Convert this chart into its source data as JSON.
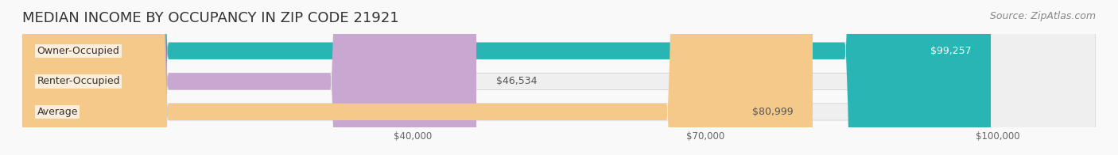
{
  "title": "MEDIAN INCOME BY OCCUPANCY IN ZIP CODE 21921",
  "source": "Source: ZipAtlas.com",
  "categories": [
    "Owner-Occupied",
    "Renter-Occupied",
    "Average"
  ],
  "values": [
    99257,
    46534,
    80999
  ],
  "labels": [
    "$99,257",
    "$46,534",
    "$80,999"
  ],
  "bar_colors": [
    "#2ab5b5",
    "#c8a8d0",
    "#f5c98a"
  ],
  "bar_bg_colors": [
    "#e8e8e8",
    "#e8e8e8",
    "#e8e8e8"
  ],
  "xmin": 0,
  "xmax": 110000,
  "xticks": [
    40000,
    70000,
    100000
  ],
  "xticklabels": [
    "$40,000",
    "$70,000",
    "$100,000"
  ],
  "title_fontsize": 13,
  "source_fontsize": 9,
  "label_fontsize": 9,
  "category_fontsize": 9
}
